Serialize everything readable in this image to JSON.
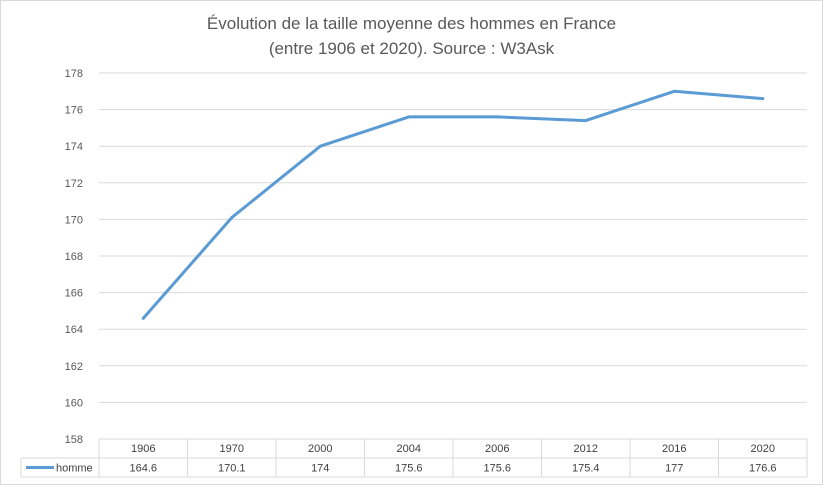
{
  "chart_data": {
    "type": "line",
    "title": "Évolution de la taille moyenne des hommes en France",
    "subtitle": "(entre 1906 et 2020). Source : W3Ask",
    "categories": [
      "1906",
      "1970",
      "2000",
      "2004",
      "2006",
      "2012",
      "2016",
      "2020"
    ],
    "series": [
      {
        "name": "homme",
        "values": [
          164.6,
          170.1,
          174,
          175.6,
          175.6,
          175.4,
          177,
          176.6
        ],
        "value_labels": [
          "164.6",
          "170.1",
          "174",
          "175.6",
          "175.6",
          "175.4",
          "177",
          "176.6"
        ],
        "color": "#5b9bd5"
      }
    ],
    "ylim": [
      158,
      178
    ],
    "yticks": [
      "158",
      "160",
      "162",
      "164",
      "166",
      "168",
      "170",
      "172",
      "174",
      "176",
      "178"
    ],
    "grid": true,
    "legend": "data-table",
    "gridline_color": "#d9d9d9",
    "text_color": "#595959"
  }
}
